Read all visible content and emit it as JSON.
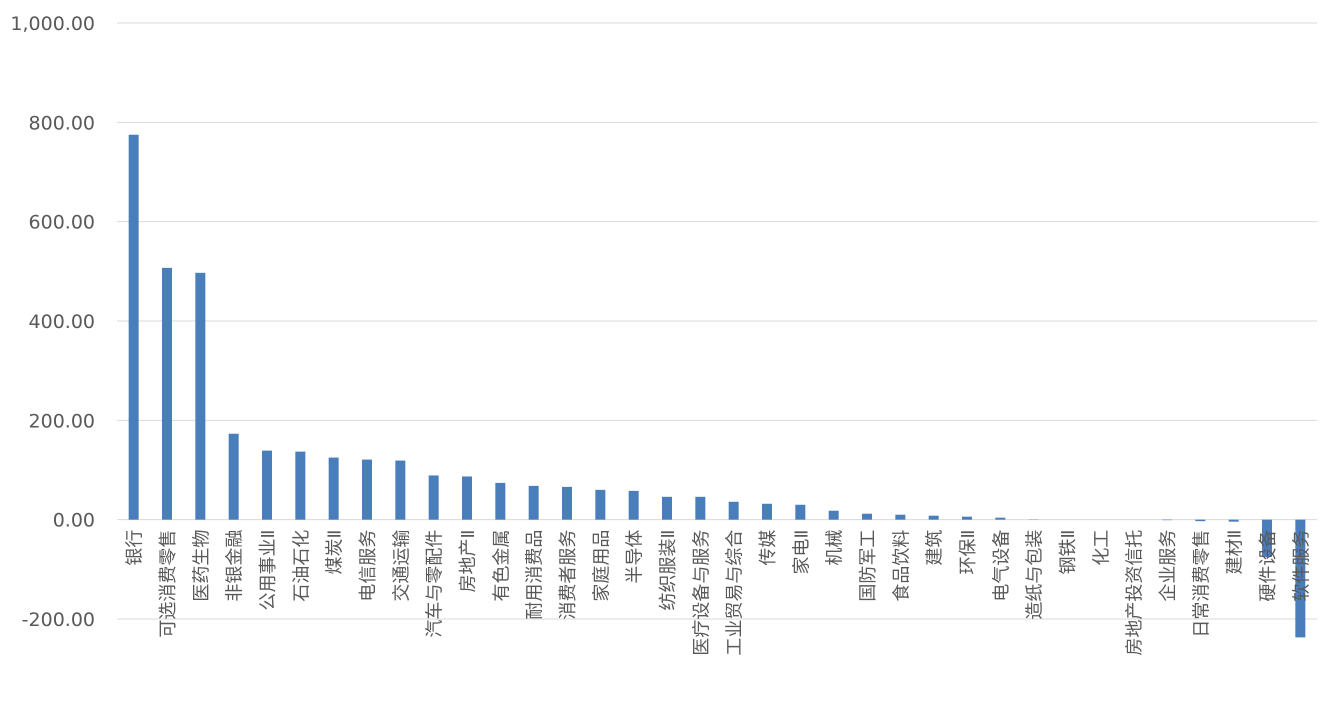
{
  "chart_data": {
    "type": "bar",
    "categories": [
      "银行",
      "可选消费零售",
      "医药生物",
      "非银金融",
      "公用事业Ⅱ",
      "石油石化",
      "煤炭Ⅱ",
      "电信服务",
      "交通运输",
      "汽车与零配件",
      "房地产Ⅱ",
      "有色金属",
      "耐用消费品",
      "消费者服务",
      "家庭用品",
      "半导体",
      "纺织服装Ⅱ",
      "医疗设备与服务",
      "工业贸易与综合",
      "传媒",
      "家电Ⅱ",
      "机械",
      "国防军工",
      "食品饮料",
      "建筑",
      "环保Ⅱ",
      "电气设备",
      "造纸与包装",
      "钢铁Ⅱ",
      "化工",
      "房地产投资信托",
      "企业服务",
      "日常消费零售",
      "建材Ⅱ",
      "硬件设备",
      "软件服务"
    ],
    "values": [
      775,
      507,
      497,
      173,
      139,
      137,
      125,
      121,
      119,
      89,
      87,
      74,
      68,
      66,
      60,
      58,
      46,
      46,
      36,
      32,
      30,
      18,
      12,
      10,
      8,
      6,
      4,
      0.5,
      0,
      0,
      0,
      -1,
      -3,
      -4,
      -75,
      -237
    ],
    "color": "#4a7ebb",
    "ylim": [
      -200,
      1000
    ],
    "yticks": [
      {
        "value": -200,
        "label": "-200.00"
      },
      {
        "value": 0,
        "label": "0.00"
      },
      {
        "value": 200,
        "label": "200.00"
      },
      {
        "value": 400,
        "label": "400.00"
      },
      {
        "value": 600,
        "label": "600.00"
      },
      {
        "value": 800,
        "label": "800.00"
      },
      {
        "value": 1000,
        "label": "1,000.00"
      }
    ],
    "grid": true
  }
}
